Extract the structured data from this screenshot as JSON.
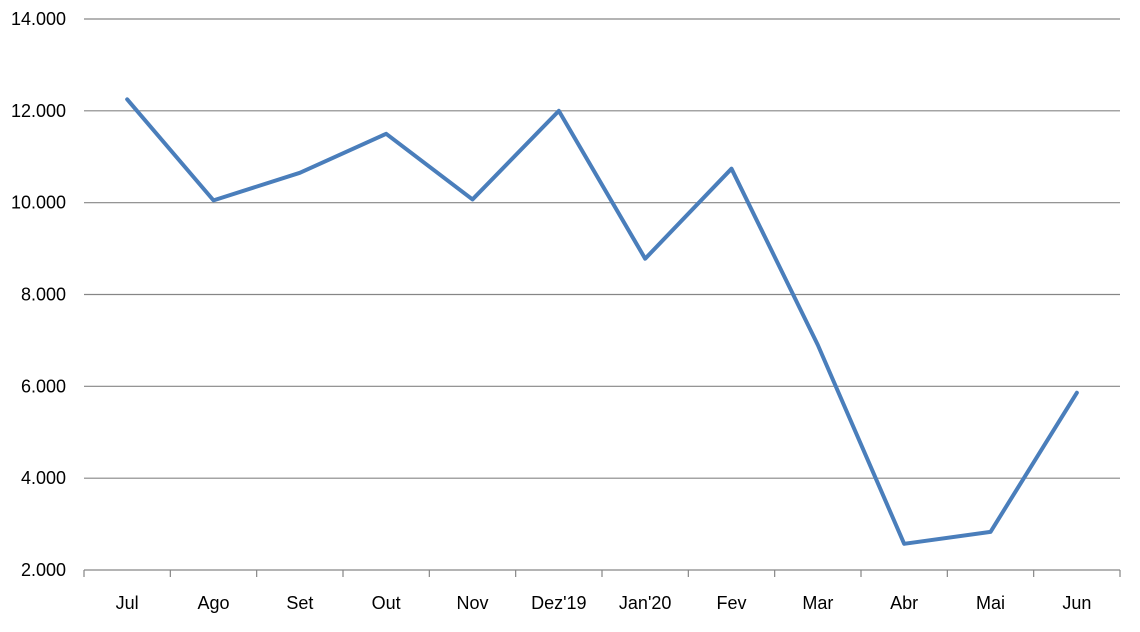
{
  "chart_data": {
    "type": "line",
    "title": "",
    "xlabel": "",
    "ylabel": "",
    "categories": [
      "Jul",
      "Ago",
      "Set",
      "Out",
      "Nov",
      "Dez'19",
      "Jan'20",
      "Fev",
      "Mar",
      "Abr",
      "Mai",
      "Jun"
    ],
    "series": [
      {
        "values": [
          12250,
          10050,
          10650,
          11500,
          10070,
          12000,
          8780,
          10740,
          6900,
          2570,
          2830,
          5860
        ],
        "color": "#4a7ebb"
      }
    ],
    "ylim": [
      2000,
      14000
    ],
    "yticks": [
      2000,
      4000,
      6000,
      8000,
      10000,
      12000,
      14000
    ],
    "ytick_labels": [
      "2.000",
      "4.000",
      "6.000",
      "8.000",
      "10.000",
      "12.000",
      "14.000"
    ],
    "grid": true,
    "legend": "none",
    "colors": {
      "line": "#4a7ebb",
      "grid": "#868686",
      "axis": "#868686"
    }
  }
}
